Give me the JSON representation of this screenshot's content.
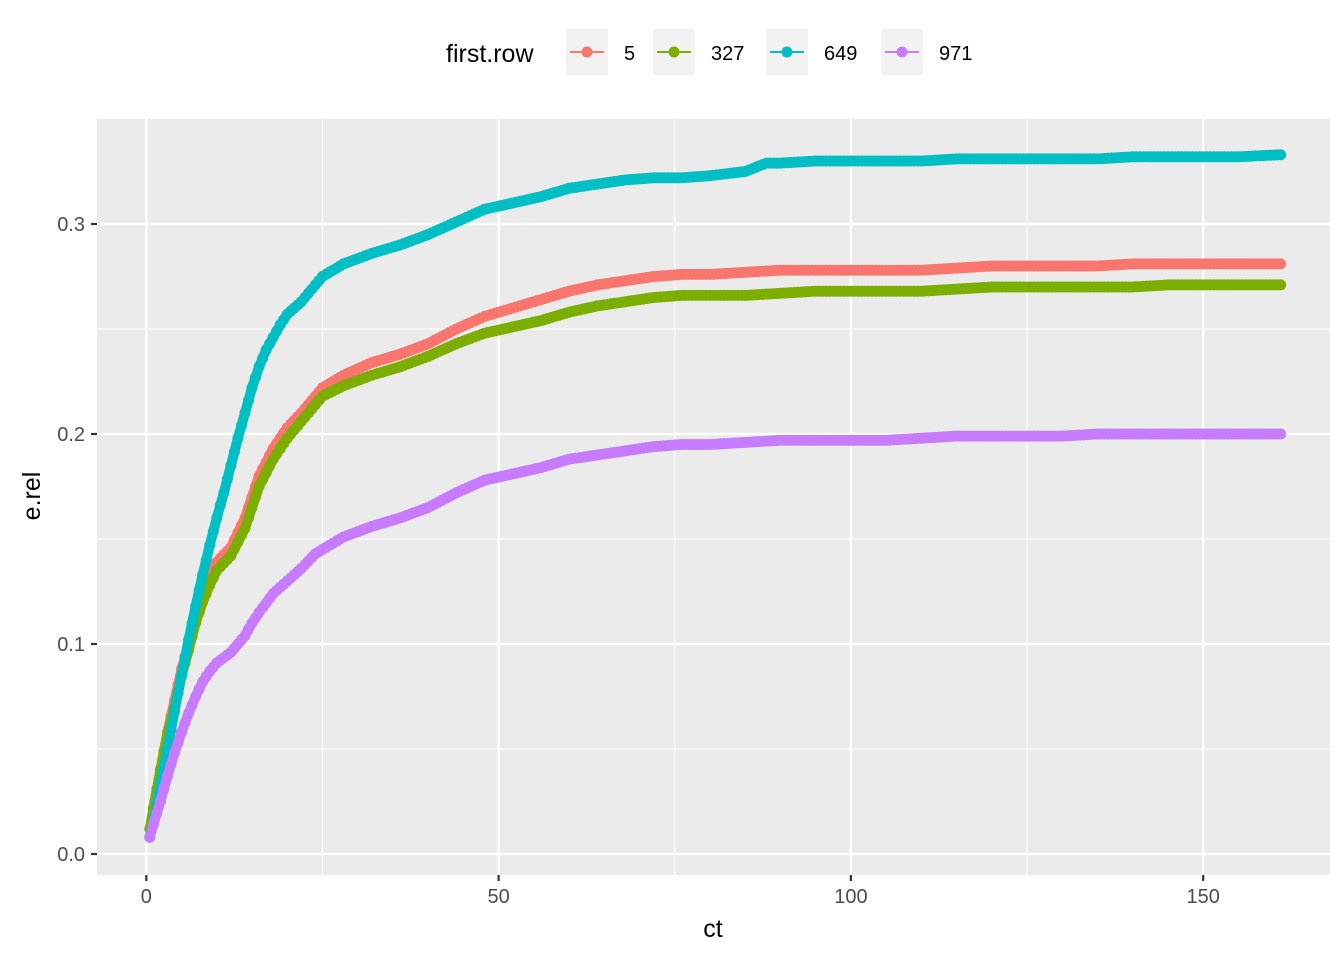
{
  "chart_data": {
    "type": "line",
    "xlabel": "ct",
    "ylabel": "e.rel",
    "xlim": [
      -7,
      168
    ],
    "ylim": [
      -0.01,
      0.35
    ],
    "x_ticks": [
      0,
      50,
      100,
      150
    ],
    "x_tick_labels": [
      "0",
      "50",
      "100",
      "150"
    ],
    "x_minor_ticks": [
      25,
      75,
      125
    ],
    "y_ticks": [
      0.0,
      0.1,
      0.2,
      0.3
    ],
    "y_tick_labels": [
      "0.0",
      "0.1",
      "0.2",
      "0.3"
    ],
    "y_minor_ticks": [
      0.05,
      0.15,
      0.25
    ],
    "grid": true,
    "panel_background": "#ebebeb",
    "legend": {
      "title": "first.row",
      "position": "top"
    },
    "series": [
      {
        "name": "5",
        "color": "#F8766D",
        "points": [
          [
            0.5,
            0.008
          ],
          [
            1,
            0.02
          ],
          [
            2,
            0.04
          ],
          [
            3,
            0.058
          ],
          [
            4,
            0.073
          ],
          [
            5,
            0.088
          ],
          [
            6,
            0.1
          ],
          [
            7,
            0.112
          ],
          [
            8,
            0.123
          ],
          [
            9,
            0.132
          ],
          [
            10,
            0.139
          ],
          [
            12,
            0.146
          ],
          [
            14,
            0.16
          ],
          [
            15,
            0.17
          ],
          [
            16,
            0.18
          ],
          [
            18,
            0.193
          ],
          [
            20,
            0.203
          ],
          [
            22,
            0.21
          ],
          [
            24,
            0.218
          ],
          [
            25,
            0.222
          ],
          [
            28,
            0.228
          ],
          [
            32,
            0.234
          ],
          [
            36,
            0.238
          ],
          [
            40,
            0.243
          ],
          [
            44,
            0.25
          ],
          [
            48,
            0.256
          ],
          [
            52,
            0.26
          ],
          [
            56,
            0.264
          ],
          [
            60,
            0.268
          ],
          [
            64,
            0.271
          ],
          [
            68,
            0.273
          ],
          [
            72,
            0.275
          ],
          [
            76,
            0.276
          ],
          [
            80,
            0.276
          ],
          [
            85,
            0.277
          ],
          [
            90,
            0.278
          ],
          [
            95,
            0.278
          ],
          [
            100,
            0.278
          ],
          [
            105,
            0.278
          ],
          [
            110,
            0.278
          ],
          [
            115,
            0.279
          ],
          [
            120,
            0.28
          ],
          [
            125,
            0.28
          ],
          [
            130,
            0.28
          ],
          [
            135,
            0.28
          ],
          [
            140,
            0.281
          ],
          [
            145,
            0.281
          ],
          [
            150,
            0.281
          ],
          [
            155,
            0.281
          ],
          [
            161,
            0.281
          ]
        ]
      },
      {
        "name": "327",
        "color": "#7CAE00",
        "points": [
          [
            0.5,
            0.012
          ],
          [
            1,
            0.022
          ],
          [
            2,
            0.04
          ],
          [
            3,
            0.057
          ],
          [
            4,
            0.07
          ],
          [
            5,
            0.085
          ],
          [
            6,
            0.097
          ],
          [
            7,
            0.11
          ],
          [
            8,
            0.12
          ],
          [
            9,
            0.128
          ],
          [
            10,
            0.135
          ],
          [
            12,
            0.142
          ],
          [
            14,
            0.155
          ],
          [
            15,
            0.165
          ],
          [
            16,
            0.175
          ],
          [
            18,
            0.188
          ],
          [
            20,
            0.198
          ],
          [
            22,
            0.206
          ],
          [
            24,
            0.214
          ],
          [
            25,
            0.218
          ],
          [
            28,
            0.223
          ],
          [
            32,
            0.228
          ],
          [
            36,
            0.232
          ],
          [
            40,
            0.237
          ],
          [
            44,
            0.243
          ],
          [
            48,
            0.248
          ],
          [
            52,
            0.251
          ],
          [
            56,
            0.254
          ],
          [
            60,
            0.258
          ],
          [
            64,
            0.261
          ],
          [
            68,
            0.263
          ],
          [
            72,
            0.265
          ],
          [
            76,
            0.266
          ],
          [
            80,
            0.266
          ],
          [
            85,
            0.266
          ],
          [
            90,
            0.267
          ],
          [
            95,
            0.268
          ],
          [
            100,
            0.268
          ],
          [
            105,
            0.268
          ],
          [
            110,
            0.268
          ],
          [
            115,
            0.269
          ],
          [
            120,
            0.27
          ],
          [
            125,
            0.27
          ],
          [
            130,
            0.27
          ],
          [
            135,
            0.27
          ],
          [
            140,
            0.27
          ],
          [
            145,
            0.271
          ],
          [
            150,
            0.271
          ],
          [
            155,
            0.271
          ],
          [
            161,
            0.271
          ]
        ]
      },
      {
        "name": "649",
        "color": "#00BFC4",
        "points": [
          [
            0.5,
            0.008
          ],
          [
            1,
            0.015
          ],
          [
            2,
            0.033
          ],
          [
            3,
            0.05
          ],
          [
            4,
            0.068
          ],
          [
            5,
            0.085
          ],
          [
            6,
            0.102
          ],
          [
            7,
            0.118
          ],
          [
            8,
            0.133
          ],
          [
            9,
            0.147
          ],
          [
            10,
            0.16
          ],
          [
            11,
            0.172
          ],
          [
            12,
            0.185
          ],
          [
            13,
            0.198
          ],
          [
            14,
            0.21
          ],
          [
            15,
            0.222
          ],
          [
            16,
            0.232
          ],
          [
            17,
            0.24
          ],
          [
            18,
            0.246
          ],
          [
            19,
            0.252
          ],
          [
            20,
            0.257
          ],
          [
            22,
            0.263
          ],
          [
            24,
            0.271
          ],
          [
            25,
            0.275
          ],
          [
            28,
            0.281
          ],
          [
            32,
            0.286
          ],
          [
            36,
            0.29
          ],
          [
            40,
            0.295
          ],
          [
            44,
            0.301
          ],
          [
            48,
            0.307
          ],
          [
            52,
            0.31
          ],
          [
            56,
            0.313
          ],
          [
            60,
            0.317
          ],
          [
            64,
            0.319
          ],
          [
            68,
            0.321
          ],
          [
            72,
            0.322
          ],
          [
            76,
            0.322
          ],
          [
            80,
            0.323
          ],
          [
            85,
            0.325
          ],
          [
            88,
            0.329
          ],
          [
            90,
            0.329
          ],
          [
            95,
            0.33
          ],
          [
            100,
            0.33
          ],
          [
            105,
            0.33
          ],
          [
            110,
            0.33
          ],
          [
            115,
            0.331
          ],
          [
            120,
            0.331
          ],
          [
            125,
            0.331
          ],
          [
            130,
            0.331
          ],
          [
            135,
            0.331
          ],
          [
            140,
            0.332
          ],
          [
            145,
            0.332
          ],
          [
            150,
            0.332
          ],
          [
            155,
            0.332
          ],
          [
            161,
            0.333
          ]
        ]
      },
      {
        "name": "971",
        "color": "#C77CFF",
        "points": [
          [
            0.5,
            0.008
          ],
          [
            1,
            0.014
          ],
          [
            2,
            0.025
          ],
          [
            3,
            0.037
          ],
          [
            4,
            0.048
          ],
          [
            5,
            0.058
          ],
          [
            6,
            0.067
          ],
          [
            7,
            0.075
          ],
          [
            8,
            0.082
          ],
          [
            9,
            0.087
          ],
          [
            10,
            0.091
          ],
          [
            12,
            0.096
          ],
          [
            14,
            0.104
          ],
          [
            15,
            0.11
          ],
          [
            16,
            0.115
          ],
          [
            18,
            0.124
          ],
          [
            20,
            0.13
          ],
          [
            22,
            0.136
          ],
          [
            24,
            0.143
          ],
          [
            25,
            0.145
          ],
          [
            28,
            0.151
          ],
          [
            32,
            0.156
          ],
          [
            36,
            0.16
          ],
          [
            40,
            0.165
          ],
          [
            44,
            0.172
          ],
          [
            48,
            0.178
          ],
          [
            52,
            0.181
          ],
          [
            56,
            0.184
          ],
          [
            60,
            0.188
          ],
          [
            64,
            0.19
          ],
          [
            68,
            0.192
          ],
          [
            72,
            0.194
          ],
          [
            76,
            0.195
          ],
          [
            80,
            0.195
          ],
          [
            85,
            0.196
          ],
          [
            90,
            0.197
          ],
          [
            95,
            0.197
          ],
          [
            100,
            0.197
          ],
          [
            105,
            0.197
          ],
          [
            110,
            0.198
          ],
          [
            115,
            0.199
          ],
          [
            120,
            0.199
          ],
          [
            125,
            0.199
          ],
          [
            130,
            0.199
          ],
          [
            135,
            0.2
          ],
          [
            140,
            0.2
          ],
          [
            145,
            0.2
          ],
          [
            150,
            0.2
          ],
          [
            155,
            0.2
          ],
          [
            161,
            0.2
          ]
        ]
      }
    ]
  }
}
